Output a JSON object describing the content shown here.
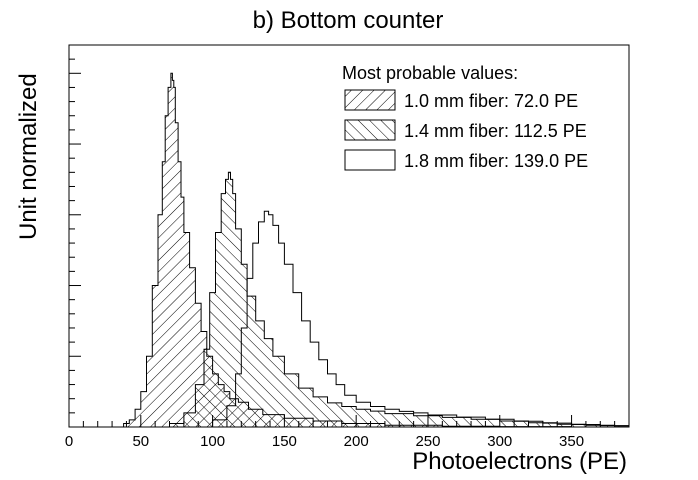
{
  "chart_data": {
    "type": "area",
    "title": "b) Bottom counter",
    "xlabel": "Photoelectrons (PE)",
    "ylabel": "Unit normalized",
    "xlim": [
      0,
      390
    ],
    "ylim": [
      0,
      1.08
    ],
    "x_ticks": [
      0,
      50,
      100,
      150,
      200,
      250,
      300,
      350
    ],
    "grid": false,
    "legend": {
      "header": "Most probable values:",
      "placement": "top-right"
    },
    "series": [
      {
        "name": "1.0 mm fiber: 72.0 PE",
        "fill": "hatch-forward",
        "points": [
          [
            38,
            0
          ],
          [
            42,
            0.01
          ],
          [
            46,
            0.02
          ],
          [
            50,
            0.05
          ],
          [
            54,
            0.1
          ],
          [
            58,
            0.2
          ],
          [
            62,
            0.4
          ],
          [
            65,
            0.6
          ],
          [
            67,
            0.75
          ],
          [
            69,
            0.88
          ],
          [
            71,
            0.96
          ],
          [
            72,
            1.0
          ],
          [
            73,
            0.98
          ],
          [
            74,
            0.96
          ],
          [
            76,
            0.86
          ],
          [
            78,
            0.75
          ],
          [
            80,
            0.65
          ],
          [
            84,
            0.55
          ],
          [
            88,
            0.45
          ],
          [
            92,
            0.35
          ],
          [
            96,
            0.27
          ],
          [
            100,
            0.2
          ],
          [
            104,
            0.15
          ],
          [
            108,
            0.12
          ],
          [
            112,
            0.1
          ],
          [
            118,
            0.08
          ],
          [
            125,
            0.07
          ],
          [
            135,
            0.05
          ],
          [
            150,
            0.035
          ],
          [
            170,
            0.025
          ],
          [
            190,
            0.017
          ],
          [
            220,
            0.01
          ],
          [
            260,
            0.005
          ],
          [
            300,
            0.002
          ],
          [
            350,
            0.001
          ],
          [
            390,
            0
          ]
        ]
      },
      {
        "name": "1.4 mm fiber: 112.5 PE",
        "fill": "hatch-back",
        "points": [
          [
            70,
            0
          ],
          [
            80,
            0.01
          ],
          [
            88,
            0.04
          ],
          [
            94,
            0.12
          ],
          [
            98,
            0.22
          ],
          [
            102,
            0.38
          ],
          [
            106,
            0.55
          ],
          [
            109,
            0.66
          ],
          [
            111,
            0.7
          ],
          [
            112.5,
            0.72
          ],
          [
            114,
            0.7
          ],
          [
            116,
            0.66
          ],
          [
            120,
            0.56
          ],
          [
            124,
            0.46
          ],
          [
            130,
            0.37
          ],
          [
            136,
            0.3
          ],
          [
            142,
            0.25
          ],
          [
            150,
            0.2
          ],
          [
            160,
            0.15
          ],
          [
            170,
            0.11
          ],
          [
            180,
            0.085
          ],
          [
            190,
            0.068
          ],
          [
            200,
            0.058
          ],
          [
            210,
            0.05
          ],
          [
            220,
            0.045
          ],
          [
            240,
            0.038
          ],
          [
            260,
            0.032
          ],
          [
            280,
            0.027
          ],
          [
            300,
            0.022
          ],
          [
            320,
            0.017
          ],
          [
            340,
            0.012
          ],
          [
            360,
            0.008
          ],
          [
            380,
            0.005
          ],
          [
            390,
            0.003
          ]
        ]
      },
      {
        "name": "1.8 mm fiber: 139.0 PE",
        "fill": "empty",
        "points": [
          [
            100,
            0
          ],
          [
            110,
            0.02
          ],
          [
            116,
            0.06
          ],
          [
            120,
            0.15
          ],
          [
            124,
            0.28
          ],
          [
            128,
            0.42
          ],
          [
            132,
            0.52
          ],
          [
            136,
            0.58
          ],
          [
            139,
            0.61
          ],
          [
            142,
            0.6
          ],
          [
            146,
            0.57
          ],
          [
            150,
            0.52
          ],
          [
            156,
            0.46
          ],
          [
            162,
            0.38
          ],
          [
            168,
            0.3
          ],
          [
            174,
            0.24
          ],
          [
            180,
            0.19
          ],
          [
            186,
            0.15
          ],
          [
            192,
            0.12
          ],
          [
            200,
            0.09
          ],
          [
            210,
            0.07
          ],
          [
            220,
            0.058
          ],
          [
            230,
            0.05
          ],
          [
            240,
            0.044
          ],
          [
            250,
            0.04
          ],
          [
            270,
            0.034
          ],
          [
            290,
            0.028
          ],
          [
            310,
            0.022
          ],
          [
            330,
            0.016
          ],
          [
            350,
            0.011
          ],
          [
            370,
            0.007
          ],
          [
            390,
            0.004
          ]
        ]
      }
    ]
  }
}
